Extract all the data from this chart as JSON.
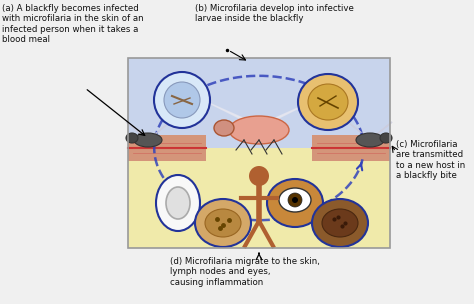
{
  "fig_width": 4.74,
  "fig_height": 3.04,
  "dpi": 100,
  "bg_color": "#f0f0f0",
  "box_bg_top": "#c8d4ec",
  "box_bg_bottom": "#f0eaaa",
  "skin_color": "#d4957a",
  "skin_color2": "#c07858",
  "skin_line_color": "#cc3333",
  "label_a": "(a) A blackfly becomes infected\nwith microfilaria in the skin of an\ninfected person when it takes a\nblood meal",
  "label_b": "(b) Microfilaria develop into infective\nlarvae inside the blackfly",
  "label_c": "(c) Microfilaria\nare transmitted\nto a new host in\na blackfly bite",
  "label_d": "(d) Microfilaria migrate to the skin,\nlymph nodes and eyes,\ncausing inflammation",
  "text_color": "#111111",
  "font_size": 6.2,
  "arrow_color": "#3344bb",
  "circle_edge": "#223399",
  "person_color": "#b06030"
}
